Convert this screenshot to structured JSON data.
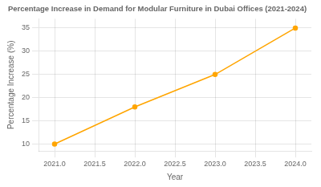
{
  "chart_data": {
    "type": "line",
    "title": "Percentage Increase in Demand for Modular Furniture in Dubai Offices (2021-2024)",
    "xlabel": "Year",
    "ylabel": "Percentage Increase (%)",
    "x": [
      2021,
      2022,
      2023,
      2024
    ],
    "values": [
      10,
      18,
      25,
      35
    ],
    "color": "#FFA500",
    "marker": "circle",
    "xlim": [
      2020.8,
      2024.2
    ],
    "ylim": [
      8.5,
      37
    ],
    "xticks": [
      {
        "value": 2021,
        "label": "2021.0"
      },
      2021.5,
      {
        "value": 2022,
        "label": "2022.0"
      },
      2022.5,
      {
        "value": 2023,
        "label": "2023.0"
      },
      2023.5,
      {
        "value": 2024,
        "label": "2024.0"
      }
    ],
    "yticks": [
      10,
      15,
      20,
      25,
      30,
      35
    ],
    "grid": true
  }
}
